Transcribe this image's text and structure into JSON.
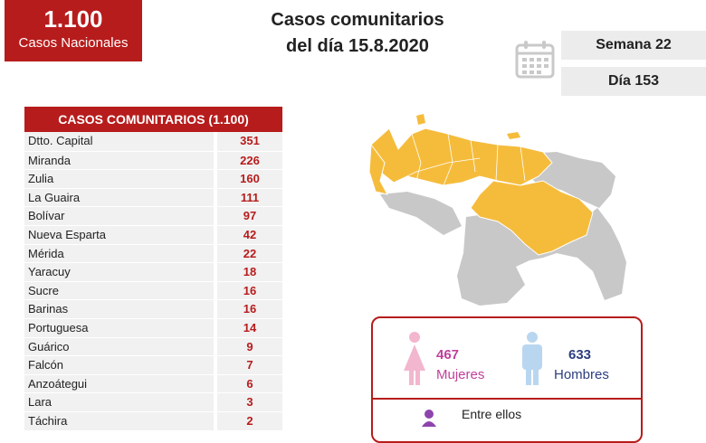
{
  "badge": {
    "count": "1.100",
    "label": "Casos Nacionales"
  },
  "title": {
    "line1": "Casos comunitarios",
    "line2": "del día 15.8.2020"
  },
  "info": {
    "semana": "Semana 22",
    "dia": "Día 153",
    "icon": "calendar-icon"
  },
  "table": {
    "header": "CASOS COMUNITARIOS (1.100)",
    "rows": [
      {
        "name": "Dtto. Capital",
        "value": "351"
      },
      {
        "name": "Miranda",
        "value": "226"
      },
      {
        "name": "Zulia",
        "value": "160"
      },
      {
        "name": "La Guaira",
        "value": "111"
      },
      {
        "name": "Bolívar",
        "value": "97"
      },
      {
        "name": "Nueva Esparta",
        "value": "42"
      },
      {
        "name": "Mérida",
        "value": "22"
      },
      {
        "name": "Yaracuy",
        "value": "18"
      },
      {
        "name": "Sucre",
        "value": "16"
      },
      {
        "name": "Barinas",
        "value": "16"
      },
      {
        "name": "Portuguesa",
        "value": "14"
      },
      {
        "name": "Guárico",
        "value": "9"
      },
      {
        "name": "Falcón",
        "value": "7"
      },
      {
        "name": "Anzoátegui",
        "value": "6"
      },
      {
        "name": "Lara",
        "value": "3"
      },
      {
        "name": "Táchira",
        "value": "2"
      }
    ]
  },
  "gender": {
    "women_count": "467",
    "women_label": "Mujeres",
    "men_count": "633",
    "men_label": "Hombres",
    "entre": "Entre ellos"
  },
  "colors": {
    "brand_red": "#b71c1c",
    "map_highlight": "#f5bc3c",
    "map_base": "#c8c8c8",
    "women": "#c0409a",
    "men": "#2c3e80",
    "women_icon": "#f3b6cf",
    "men_icon": "#b9d6f0"
  }
}
